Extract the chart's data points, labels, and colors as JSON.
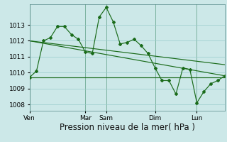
{
  "background_color": "#cce8e8",
  "grid_color": "#99cccc",
  "line_color": "#1a6b1a",
  "marker_color": "#1a6b1a",
  "xlabel": "Pression niveau de la mer( hPa )",
  "xlabel_fontsize": 8.5,
  "ylim": [
    1007.6,
    1014.3
  ],
  "yticks": [
    1008,
    1009,
    1010,
    1011,
    1012,
    1013
  ],
  "xtick_labels": [
    "Ven",
    "Mar",
    "Sam",
    "Dim",
    "Lun"
  ],
  "xtick_positions": [
    0,
    8,
    11,
    18,
    24
  ],
  "vline_positions": [
    0,
    8,
    11,
    18,
    24
  ],
  "series1_x": [
    0,
    1,
    2,
    3,
    4,
    5,
    6,
    7,
    8,
    9,
    10,
    11,
    12,
    13,
    14,
    15,
    16,
    17,
    18,
    19,
    20,
    21,
    22,
    23,
    24,
    25,
    26,
    27,
    28
  ],
  "series1_y": [
    1009.7,
    1010.1,
    1012.0,
    1012.2,
    1012.9,
    1012.9,
    1012.4,
    1012.1,
    1011.3,
    1011.2,
    1013.5,
    1014.1,
    1013.2,
    1011.8,
    1011.9,
    1012.1,
    1011.7,
    1011.2,
    1010.3,
    1009.5,
    1009.5,
    1008.65,
    1010.3,
    1010.2,
    1008.1,
    1008.8,
    1009.3,
    1009.5,
    1009.8
  ],
  "trend1_x": [
    0,
    28
  ],
  "trend1_y": [
    1012.0,
    1009.8
  ],
  "trend2_x": [
    0,
    28
  ],
  "trend2_y": [
    1012.0,
    1010.5
  ],
  "trend3_x": [
    0,
    28
  ],
  "trend3_y": [
    1009.7,
    1009.7
  ],
  "xlim": [
    0,
    28
  ]
}
